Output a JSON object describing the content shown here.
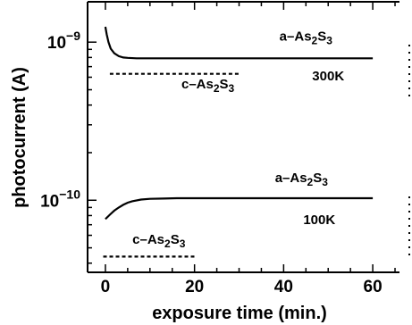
{
  "chart_data": {
    "type": "line",
    "xlabel": "exposure time (min.)",
    "ylabel": "photocurrent (A)",
    "xlim": [
      -4,
      66
    ],
    "ylim": [
      3.5e-11,
      1.8e-09
    ],
    "y_scale": "log",
    "x_ticks": [
      0,
      20,
      40,
      60
    ],
    "x_tick_labels": [
      "0",
      "20",
      "40",
      "60"
    ],
    "y_ticks": [
      {
        "value": 1e-09,
        "base": "10",
        "exp": "−9"
      },
      {
        "value": 1e-10,
        "base": "10",
        "exp": "−10"
      }
    ],
    "series": [
      {
        "name": "a-As2S3 300K",
        "style": "solid",
        "x": [
          0,
          0.3,
          0.7,
          1.2,
          2,
          3,
          4,
          5,
          7,
          10,
          15,
          20,
          30,
          40,
          50,
          60
        ],
        "y": [
          1.25e-09,
          1.12e-09,
          1e-09,
          9.1e-10,
          8.5e-10,
          8.15e-10,
          8e-10,
          7.95e-10,
          7.9e-10,
          7.9e-10,
          7.9e-10,
          7.9e-10,
          7.9e-10,
          7.9e-10,
          7.9e-10,
          7.9e-10
        ]
      },
      {
        "name": "c-As2S3 300K",
        "style": "dashed",
        "x": [
          1,
          30
        ],
        "y": [
          6.3e-10,
          6.3e-10
        ]
      },
      {
        "name": "a-As2S3 100K",
        "style": "solid",
        "x": [
          0,
          1,
          2,
          3,
          4,
          5,
          6,
          8,
          10,
          13,
          16,
          20,
          30,
          40,
          50,
          60
        ],
        "y": [
          7.6e-11,
          8.1e-11,
          8.6e-11,
          9e-11,
          9.35e-11,
          9.65e-11,
          9.85e-11,
          1.01e-10,
          1.02e-10,
          1.025e-10,
          1.03e-10,
          1.03e-10,
          1.03e-10,
          1.03e-10,
          1.03e-10,
          1.03e-10
        ]
      },
      {
        "name": "c-As2S3 100K",
        "style": "dashed",
        "x": [
          -0.5,
          20
        ],
        "y": [
          4.4e-11,
          4.4e-11
        ]
      }
    ],
    "annotations": [
      {
        "id": "a300",
        "prefix": "a–As",
        "sub1": "2",
        "mid": "S",
        "sub2": "3",
        "at": [
          45,
          1.02e-09
        ]
      },
      {
        "id": "c300",
        "prefix": "c–As",
        "sub1": "2",
        "mid": "S",
        "sub2": "3",
        "at": [
          23,
          5.1e-10
        ]
      },
      {
        "id": "t300",
        "text": "300K",
        "at": [
          50,
          5.75e-10
        ]
      },
      {
        "id": "a100",
        "prefix": "a–As",
        "sub1": "2",
        "mid": "S",
        "sub2": "3",
        "at": [
          44,
          1.3e-10
        ]
      },
      {
        "id": "t100",
        "text": "100K",
        "at": [
          48,
          7.05e-11
        ]
      },
      {
        "id": "c100",
        "prefix": "c–As",
        "sub1": "2",
        "mid": "S",
        "sub2": "3",
        "at": [
          12,
          5.3e-11
        ]
      }
    ]
  }
}
